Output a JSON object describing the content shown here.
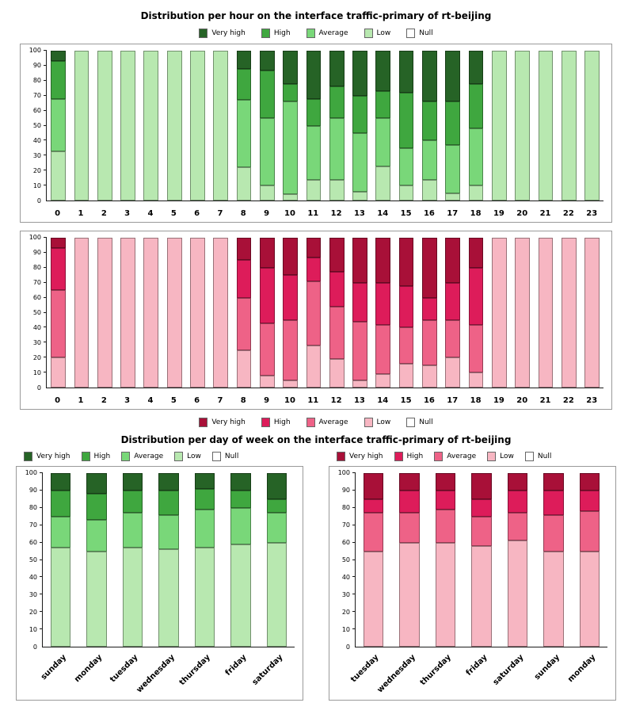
{
  "titles": {
    "hourly": "Distribution per hour on the interface traffic-primary of rt-beijing",
    "daily": "Distribution per day of week on the interface traffic-primary of rt-beijing"
  },
  "legend": [
    {
      "label": "Very high",
      "key": "very_high"
    },
    {
      "label": "High",
      "key": "high"
    },
    {
      "label": "Average",
      "key": "average"
    },
    {
      "label": "Low",
      "key": "low"
    },
    {
      "label": "Null",
      "key": "null"
    }
  ],
  "palettes": {
    "green": {
      "very_high": "#266326",
      "high": "#3fa73f",
      "average": "#79d779",
      "low": "#b8e8b0",
      "null": "#ffffff"
    },
    "red": {
      "very_high": "#a81038",
      "high": "#dd1c5a",
      "average": "#ee6287",
      "low": "#f7b6c2",
      "null": "#ffffff"
    }
  },
  "chart_data": [
    {
      "type": "bar",
      "stacked": true,
      "palette": "green",
      "title": "Distribution per hour on the interface traffic-primary of rt-beijing",
      "ylim": [
        0,
        100
      ],
      "yticks": [
        0,
        10,
        20,
        30,
        40,
        50,
        60,
        70,
        80,
        90,
        100
      ],
      "rotate_labels": false,
      "categories": [
        "0",
        "1",
        "2",
        "3",
        "4",
        "5",
        "6",
        "7",
        "8",
        "9",
        "10",
        "11",
        "12",
        "13",
        "14",
        "15",
        "16",
        "17",
        "18",
        "19",
        "20",
        "21",
        "22",
        "23"
      ],
      "series": [
        {
          "name": "Low",
          "key": "low",
          "values": [
            33,
            100,
            100,
            100,
            100,
            100,
            100,
            100,
            22,
            10,
            4,
            14,
            14,
            6,
            23,
            10,
            14,
            5,
            10,
            100,
            100,
            100,
            100,
            100
          ]
        },
        {
          "name": "Average",
          "key": "average",
          "values": [
            35,
            0,
            0,
            0,
            0,
            0,
            0,
            0,
            45,
            45,
            62,
            36,
            41,
            39,
            32,
            25,
            26,
            32,
            38,
            0,
            0,
            0,
            0,
            0
          ]
        },
        {
          "name": "High",
          "key": "high",
          "values": [
            25,
            0,
            0,
            0,
            0,
            0,
            0,
            0,
            21,
            32,
            12,
            18,
            21,
            25,
            18,
            37,
            26,
            29,
            30,
            0,
            0,
            0,
            0,
            0
          ]
        },
        {
          "name": "Very high",
          "key": "very_high",
          "values": [
            7,
            0,
            0,
            0,
            0,
            0,
            0,
            0,
            12,
            13,
            22,
            32,
            24,
            30,
            27,
            28,
            34,
            34,
            22,
            0,
            0,
            0,
            0,
            0
          ]
        },
        {
          "name": "Null",
          "key": "null",
          "values": [
            0,
            0,
            0,
            0,
            0,
            0,
            0,
            0,
            0,
            0,
            0,
            0,
            0,
            0,
            0,
            0,
            0,
            0,
            0,
            0,
            0,
            0,
            0,
            0
          ]
        }
      ]
    },
    {
      "type": "bar",
      "stacked": true,
      "palette": "red",
      "title": "Distribution per hour on the interface traffic-primary of rt-beijing",
      "ylim": [
        0,
        100
      ],
      "yticks": [
        0,
        10,
        20,
        30,
        40,
        50,
        60,
        70,
        80,
        90,
        100
      ],
      "rotate_labels": false,
      "categories": [
        "0",
        "1",
        "2",
        "3",
        "4",
        "5",
        "6",
        "7",
        "8",
        "9",
        "10",
        "11",
        "12",
        "13",
        "14",
        "15",
        "16",
        "17",
        "18",
        "19",
        "20",
        "21",
        "22",
        "23"
      ],
      "series": [
        {
          "name": "Low",
          "key": "low",
          "values": [
            20,
            100,
            100,
            100,
            100,
            100,
            100,
            100,
            25,
            8,
            5,
            28,
            19,
            5,
            9,
            16,
            15,
            20,
            10,
            100,
            100,
            100,
            100,
            100
          ]
        },
        {
          "name": "Average",
          "key": "average",
          "values": [
            45,
            0,
            0,
            0,
            0,
            0,
            0,
            0,
            35,
            35,
            40,
            43,
            35,
            39,
            33,
            24,
            30,
            25,
            32,
            0,
            0,
            0,
            0,
            0
          ]
        },
        {
          "name": "High",
          "key": "high",
          "values": [
            28,
            0,
            0,
            0,
            0,
            0,
            0,
            0,
            25,
            37,
            30,
            16,
            23,
            26,
            28,
            28,
            15,
            25,
            38,
            0,
            0,
            0,
            0,
            0
          ]
        },
        {
          "name": "Very high",
          "key": "very_high",
          "values": [
            7,
            0,
            0,
            0,
            0,
            0,
            0,
            0,
            15,
            20,
            25,
            13,
            23,
            30,
            30,
            32,
            40,
            30,
            20,
            0,
            0,
            0,
            0,
            0
          ]
        },
        {
          "name": "Null",
          "key": "null",
          "values": [
            0,
            0,
            0,
            0,
            0,
            0,
            0,
            0,
            0,
            0,
            0,
            0,
            0,
            0,
            0,
            0,
            0,
            0,
            0,
            0,
            0,
            0,
            0,
            0
          ]
        }
      ]
    },
    {
      "type": "bar",
      "stacked": true,
      "palette": "green",
      "title": "Distribution per day of week on the interface traffic-primary of rt-beijing",
      "ylim": [
        0,
        100
      ],
      "yticks": [
        0,
        10,
        20,
        30,
        40,
        50,
        60,
        70,
        80,
        90,
        100
      ],
      "rotate_labels": true,
      "categories": [
        "sunday",
        "monday",
        "tuesday",
        "wednesday",
        "thursday",
        "friday",
        "saturday"
      ],
      "series": [
        {
          "name": "Low",
          "key": "low",
          "values": [
            57,
            55,
            57,
            56,
            57,
            59,
            60
          ]
        },
        {
          "name": "Average",
          "key": "average",
          "values": [
            18,
            18,
            20,
            20,
            22,
            21,
            17
          ]
        },
        {
          "name": "High",
          "key": "high",
          "values": [
            15,
            15,
            13,
            14,
            12,
            10,
            8
          ]
        },
        {
          "name": "Very high",
          "key": "very_high",
          "values": [
            10,
            12,
            10,
            10,
            9,
            10,
            15
          ]
        },
        {
          "name": "Null",
          "key": "null",
          "values": [
            0,
            0,
            0,
            0,
            0,
            0,
            0
          ]
        }
      ]
    },
    {
      "type": "bar",
      "stacked": true,
      "palette": "red",
      "title": "Distribution per day of week on the interface traffic-primary of rt-beijing",
      "ylim": [
        0,
        100
      ],
      "yticks": [
        0,
        10,
        20,
        30,
        40,
        50,
        60,
        70,
        80,
        90,
        100
      ],
      "rotate_labels": true,
      "categories": [
        "tuesday",
        "wednesday",
        "thursday",
        "friday",
        "saturday",
        "sunday",
        "monday"
      ],
      "series": [
        {
          "name": "Low",
          "key": "low",
          "values": [
            55,
            60,
            60,
            58,
            61,
            55,
            55
          ]
        },
        {
          "name": "Average",
          "key": "average",
          "values": [
            22,
            17,
            19,
            17,
            16,
            21,
            23
          ]
        },
        {
          "name": "High",
          "key": "high",
          "values": [
            8,
            13,
            11,
            10,
            13,
            14,
            12
          ]
        },
        {
          "name": "Very high",
          "key": "very_high",
          "values": [
            15,
            10,
            10,
            15,
            10,
            10,
            10
          ]
        },
        {
          "name": "Null",
          "key": "null",
          "values": [
            0,
            0,
            0,
            0,
            0,
            0,
            0
          ]
        }
      ]
    }
  ]
}
